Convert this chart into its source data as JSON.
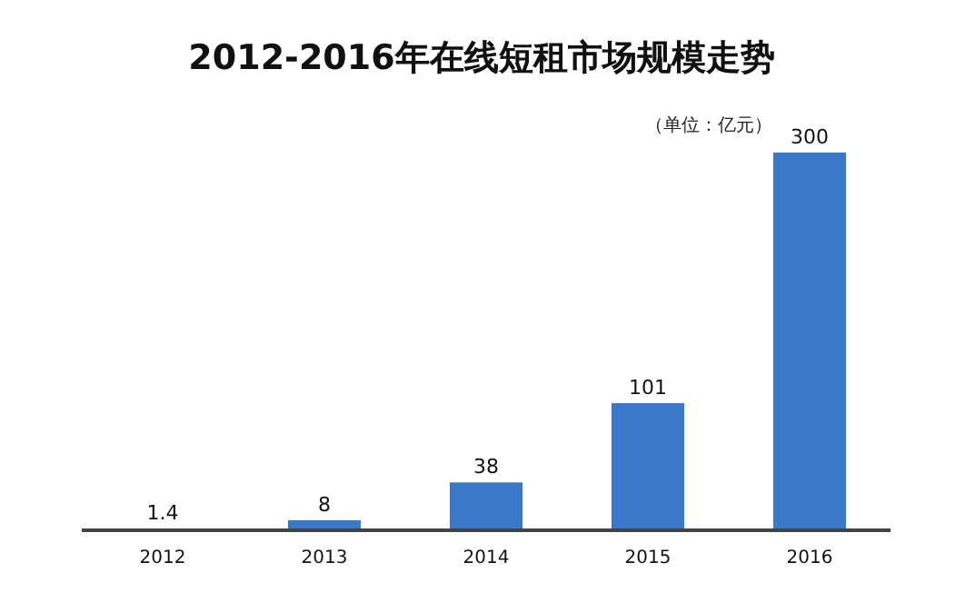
{
  "chart_data": {
    "type": "bar",
    "title": "2012-2016年在线短租市场规模走势",
    "annotations": [
      "（单位：亿元）"
    ],
    "categories": [
      "2012",
      "2013",
      "2014",
      "2015",
      "2016"
    ],
    "values": [
      1.4,
      8,
      38,
      101,
      300
    ],
    "color": "#3a78c8",
    "data_labels": true
  }
}
